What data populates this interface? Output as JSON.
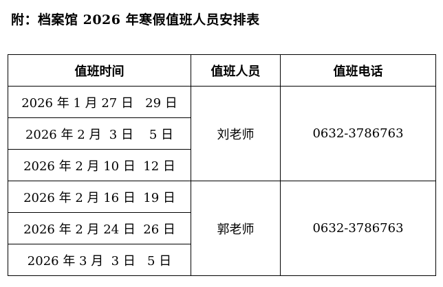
{
  "title": "附：档案馆 2026 年寒假值班人员安排表",
  "table": {
    "headers": [
      "值班时间",
      "值班人员",
      "值班电话"
    ],
    "groups": [
      {
        "dates": [
          "2026 年 1 月 27 日   29 日",
          "2026 年 2 月  3 日    5 日",
          "2026 年 2 月 10 日  12 日"
        ],
        "person": "刘老师",
        "phone": "0632-3786763"
      },
      {
        "dates": [
          "2026 年 2 月 16 日  19 日",
          "2026 年 2 月 24 日  26 日",
          "2026 年 3 月  3 日   5 日"
        ],
        "person": "郭老师",
        "phone": "0632-3786763"
      }
    ]
  }
}
